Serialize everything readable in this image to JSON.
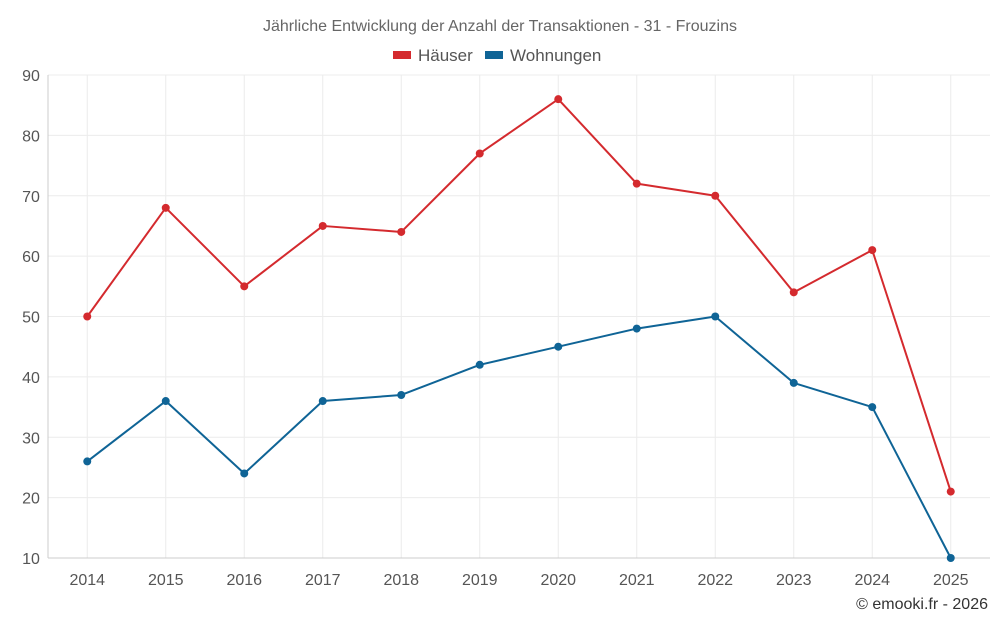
{
  "chart_data": {
    "type": "line",
    "title": "Jährliche Entwicklung der Anzahl der Transaktionen - 31 - Frouzins",
    "categories": [
      "2014",
      "2015",
      "2016",
      "2017",
      "2018",
      "2019",
      "2020",
      "2021",
      "2022",
      "2023",
      "2024",
      "2025"
    ],
    "series": [
      {
        "name": "Häuser",
        "color": "#d42a2e",
        "values": [
          50,
          68,
          55,
          65,
          64,
          77,
          86,
          72,
          70,
          54,
          61,
          21
        ]
      },
      {
        "name": "Wohnungen",
        "color": "#0f6496",
        "values": [
          26,
          36,
          24,
          36,
          37,
          42,
          45,
          48,
          50,
          39,
          35,
          10
        ]
      }
    ],
    "ylim": [
      10,
      90
    ],
    "yticks": [
      10,
      20,
      30,
      40,
      50,
      60,
      70,
      80,
      90
    ],
    "grid": true,
    "legend_position": "top-center"
  },
  "credit": "© emooki.fr - 2026"
}
